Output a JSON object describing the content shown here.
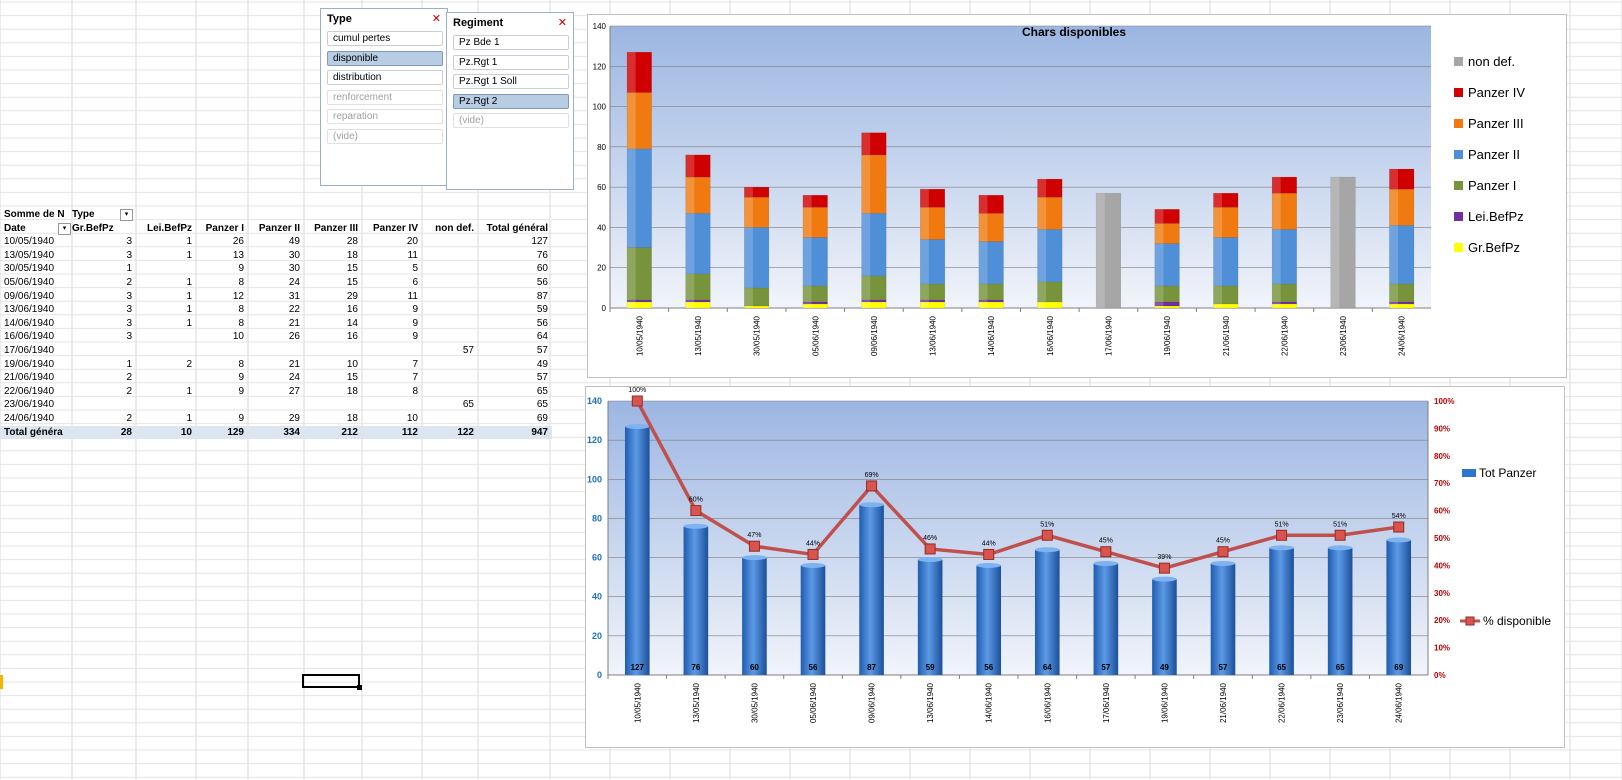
{
  "slicer_type": {
    "title": "Type",
    "items": [
      {
        "label": "cumul pertes",
        "state": "normal"
      },
      {
        "label": "disponible",
        "state": "selected"
      },
      {
        "label": "distribution",
        "state": "normal"
      },
      {
        "label": "renforcement",
        "state": "dim"
      },
      {
        "label": "reparation",
        "state": "dim"
      },
      {
        "label": "(vide)",
        "state": "dim"
      }
    ]
  },
  "slicer_regiment": {
    "title": "Regiment",
    "items": [
      {
        "label": "Pz Bde 1",
        "state": "normal"
      },
      {
        "label": "Pz.Rgt 1",
        "state": "normal"
      },
      {
        "label": "Pz.Rgt 1 Soll",
        "state": "normal"
      },
      {
        "label": "Pz.Rgt 2",
        "state": "selected"
      },
      {
        "label": "(vide)",
        "state": "dim"
      }
    ]
  },
  "pivot": {
    "corner_label": "Somme de N",
    "col_field": "Type",
    "row_field": "Date",
    "headers": [
      "Gr.BefPz",
      "Lei.BefPz",
      "Panzer I",
      "Panzer II",
      "Panzer III",
      "Panzer IV",
      "non def.",
      "Total général"
    ],
    "rows": [
      [
        "10/05/1940",
        "3",
        "1",
        "26",
        "49",
        "28",
        "20",
        "",
        "127"
      ],
      [
        "13/05/1940",
        "3",
        "1",
        "13",
        "30",
        "18",
        "11",
        "",
        "76"
      ],
      [
        "30/05/1940",
        "1",
        "",
        "9",
        "30",
        "15",
        "5",
        "",
        "60"
      ],
      [
        "05/06/1940",
        "2",
        "1",
        "8",
        "24",
        "15",
        "6",
        "",
        "56"
      ],
      [
        "09/06/1940",
        "3",
        "1",
        "12",
        "31",
        "29",
        "11",
        "",
        "87"
      ],
      [
        "13/06/1940",
        "3",
        "1",
        "8",
        "22",
        "16",
        "9",
        "",
        "59"
      ],
      [
        "14/06/1940",
        "3",
        "1",
        "8",
        "21",
        "14",
        "9",
        "",
        "56"
      ],
      [
        "16/06/1940",
        "3",
        "",
        "10",
        "26",
        "16",
        "9",
        "",
        "64"
      ],
      [
        "17/06/1940",
        "",
        "",
        "",
        "",
        "",
        "",
        "57",
        "57"
      ],
      [
        "19/06/1940",
        "1",
        "2",
        "8",
        "21",
        "10",
        "7",
        "",
        "49"
      ],
      [
        "21/06/1940",
        "2",
        "",
        "9",
        "24",
        "15",
        "7",
        "",
        "57"
      ],
      [
        "22/06/1940",
        "2",
        "1",
        "9",
        "27",
        "18",
        "8",
        "",
        "65"
      ],
      [
        "23/06/1940",
        "",
        "",
        "",
        "",
        "",
        "",
        "65",
        "65"
      ],
      [
        "24/06/1940",
        "2",
        "1",
        "9",
        "29",
        "18",
        "10",
        "",
        "69"
      ]
    ],
    "total_row": [
      "Total généra",
      "28",
      "10",
      "129",
      "334",
      "212",
      "112",
      "122",
      "947"
    ]
  },
  "chart_data": [
    {
      "type": "bar",
      "stacked": true,
      "title": "Chars disponibles",
      "categories": [
        "10/05/1940",
        "13/05/1940",
        "30/05/1940",
        "05/06/1940",
        "09/06/1940",
        "13/06/1940",
        "14/06/1940",
        "16/06/1940",
        "17/06/1940",
        "19/06/1940",
        "21/06/1940",
        "22/06/1940",
        "23/06/1940",
        "24/06/1940"
      ],
      "ylim": [
        0,
        140
      ],
      "yticks": [
        0,
        20,
        40,
        60,
        80,
        100,
        120,
        140
      ],
      "legend_position": "right",
      "series": [
        {
          "name": "Gr.BefPz",
          "color": "#ffff00",
          "values": [
            3,
            3,
            1,
            2,
            3,
            3,
            3,
            3,
            0,
            1,
            2,
            2,
            0,
            2
          ]
        },
        {
          "name": "Lei.BefPz",
          "color": "#7030a0",
          "values": [
            1,
            1,
            0,
            1,
            1,
            1,
            1,
            0,
            0,
            2,
            0,
            1,
            0,
            1
          ]
        },
        {
          "name": "Panzer I",
          "color": "#77933c",
          "values": [
            26,
            13,
            9,
            8,
            12,
            8,
            8,
            10,
            0,
            8,
            9,
            9,
            0,
            9
          ]
        },
        {
          "name": "Panzer II",
          "color": "#4f8fd8",
          "values": [
            49,
            30,
            30,
            24,
            31,
            22,
            21,
            26,
            0,
            21,
            24,
            27,
            0,
            29
          ]
        },
        {
          "name": "Panzer III",
          "color": "#f07a10",
          "values": [
            28,
            18,
            15,
            15,
            29,
            16,
            14,
            16,
            0,
            10,
            15,
            18,
            0,
            18
          ]
        },
        {
          "name": "Panzer IV",
          "color": "#d00000",
          "values": [
            20,
            11,
            5,
            6,
            11,
            9,
            9,
            9,
            0,
            7,
            7,
            8,
            0,
            10
          ]
        },
        {
          "name": "non def.",
          "color": "#a6a6a6",
          "values": [
            0,
            0,
            0,
            0,
            0,
            0,
            0,
            0,
            57,
            0,
            0,
            0,
            65,
            0
          ]
        }
      ]
    },
    {
      "type": "bar",
      "combo": "bar+line",
      "categories": [
        "10/05/1940",
        "13/05/1940",
        "30/05/1940",
        "05/06/1940",
        "09/06/1940",
        "13/06/1940",
        "14/06/1940",
        "16/06/1940",
        "17/06/1940",
        "19/06/1940",
        "21/06/1940",
        "22/06/1940",
        "23/06/1940",
        "24/06/1940"
      ],
      "ylim": [
        0,
        140
      ],
      "yticks": [
        0,
        20,
        40,
        60,
        80,
        100,
        120,
        140
      ],
      "y2lim": [
        0,
        100
      ],
      "y2ticks": [
        "0%",
        "10%",
        "20%",
        "30%",
        "40%",
        "50%",
        "60%",
        "70%",
        "80%",
        "90%",
        "100%"
      ],
      "legend_position": "right",
      "series": [
        {
          "name": "Tot Panzer",
          "color": "#2e75d0",
          "values": [
            127,
            76,
            60,
            56,
            87,
            59,
            56,
            64,
            57,
            49,
            57,
            65,
            65,
            69
          ],
          "labels": [
            "127",
            "76",
            "60",
            "56",
            "87",
            "59",
            "56",
            "64",
            "57",
            "49",
            "57",
            "65",
            "65",
            "69"
          ]
        },
        {
          "name": "% disponible",
          "color": "#c0504d",
          "axis": "secondary",
          "values": [
            100,
            60,
            47,
            44,
            69,
            46,
            44,
            51,
            45,
            39,
            45,
            51,
            51,
            54
          ],
          "labels": [
            "100%",
            "60%",
            "47%",
            "44%",
            "69%",
            "46%",
            "44%",
            "51%",
            "45%",
            "39%",
            "45%",
            "51%",
            "51%",
            "54%"
          ]
        }
      ]
    }
  ]
}
